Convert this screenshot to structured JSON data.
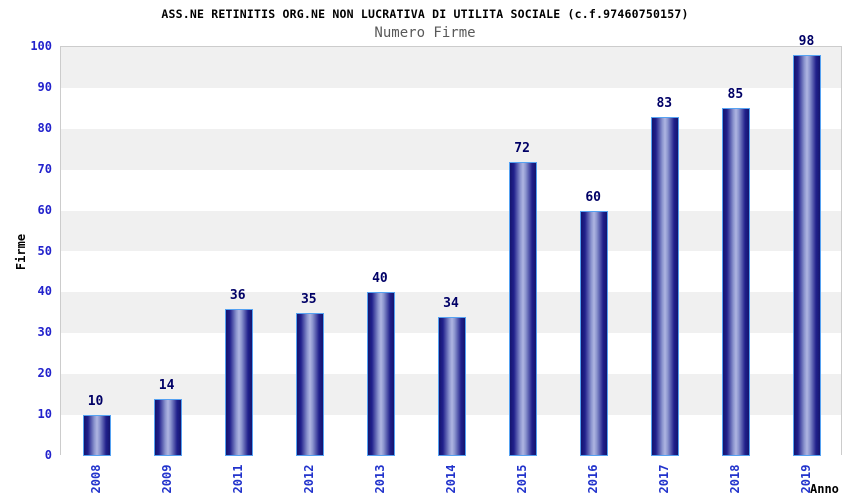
{
  "header": {
    "title": "ASS.NE RETINITIS ORG.NE NON LUCRATIVA DI UTILITA SOCIALE (c.f.97460750157)",
    "subtitle": "Numero Firme"
  },
  "chart_data": {
    "type": "bar",
    "title": "ASS.NE RETINITIS ORG.NE NON LUCRATIVA DI UTILITA SOCIALE (c.f.97460750157)",
    "subtitle": "Numero Firme",
    "categories": [
      "2008",
      "2009",
      "2011",
      "2012",
      "2013",
      "2014",
      "2015",
      "2016",
      "2017",
      "2018",
      "2019"
    ],
    "values": [
      10,
      14,
      36,
      35,
      40,
      34,
      72,
      60,
      83,
      85,
      98
    ],
    "xlabel": "Anno",
    "ylabel": "Firme",
    "ylim": [
      0,
      100
    ],
    "ytick_step": 10,
    "grid": "alternating-horizontal-bands",
    "legend": "none",
    "colors": {
      "tick_label_blue": "#2222cc",
      "value_label_navy": "#000066",
      "bar_border_lightblue": "#55a2f2",
      "bar_gradient_dark": "#14146e",
      "bar_gradient_light": "#aeb5e1",
      "band_gray": "#f0f0f0",
      "band_white": "#ffffff",
      "plot_border_gray": "#cccccc",
      "subtitle_gray": "#595959",
      "title_black": "#000000"
    }
  }
}
